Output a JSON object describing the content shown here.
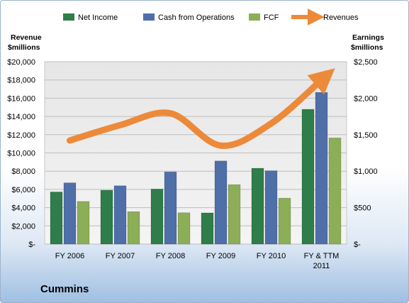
{
  "chart_data": {
    "type": "bar",
    "title": "Cummins",
    "categories": [
      "FY 2006",
      "FY 2007",
      "FY 2008",
      "FY 2009",
      "FY 2010",
      "FY & TTM 2011"
    ],
    "left_axis": {
      "label_line1": "Revenue",
      "label_line2": "$millions",
      "ylim": [
        0,
        20000
      ],
      "ticks": [
        "$-",
        "$2,000",
        "$4,000",
        "$6,000",
        "$8,000",
        "$10,000",
        "$12,000",
        "$14,000",
        "$16,000",
        "$18,000",
        "$20,000"
      ]
    },
    "right_axis": {
      "label_line1": "Earnings",
      "label_line2": "$millions",
      "ylim": [
        0,
        2500
      ],
      "ticks": [
        "$-",
        "$500",
        "$1,000",
        "$1,500",
        "$2,000",
        "$2,500"
      ]
    },
    "series": [
      {
        "name": "Net Income",
        "type": "bar",
        "axis": "right",
        "color": "#2e7d4a",
        "values": [
          715,
          739,
          755,
          428,
          1040,
          1848
        ]
      },
      {
        "name": "Cash from Operations",
        "type": "bar",
        "axis": "right",
        "color": "#4f6fa8",
        "values": [
          840,
          800,
          990,
          1140,
          1006,
          2080
        ]
      },
      {
        "name": "FCF",
        "type": "bar",
        "axis": "right",
        "color": "#8cae57",
        "values": [
          585,
          445,
          430,
          815,
          630,
          1455
        ]
      },
      {
        "name": "Revenues",
        "type": "line",
        "axis": "left",
        "color": "#ec8a3a",
        "values": [
          11362,
          13048,
          14342,
          10800,
          13226,
          18000
        ]
      }
    ],
    "grid": true,
    "legend_position": "top"
  }
}
